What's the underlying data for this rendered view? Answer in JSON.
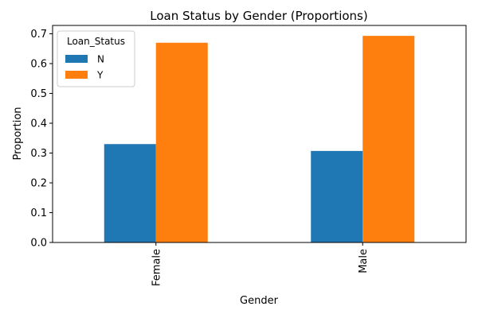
{
  "chart_data": {
    "type": "bar",
    "title": "Loan Status by Gender (Proportions)",
    "xlabel": "Gender",
    "ylabel": "Proportion",
    "categories": [
      "Female",
      "Male"
    ],
    "series": [
      {
        "name": "N",
        "color": "#1f77b4",
        "values": [
          0.33,
          0.307
        ]
      },
      {
        "name": "Y",
        "color": "#ff7f0e",
        "values": [
          0.67,
          0.693
        ]
      }
    ],
    "ylim": [
      0,
      0.728
    ],
    "yticks": [
      "0.0",
      "0.1",
      "0.2",
      "0.3",
      "0.4",
      "0.5",
      "0.6",
      "0.7"
    ],
    "legend": {
      "title": "Loan_Status",
      "position": "top-left"
    },
    "grid": false
  }
}
